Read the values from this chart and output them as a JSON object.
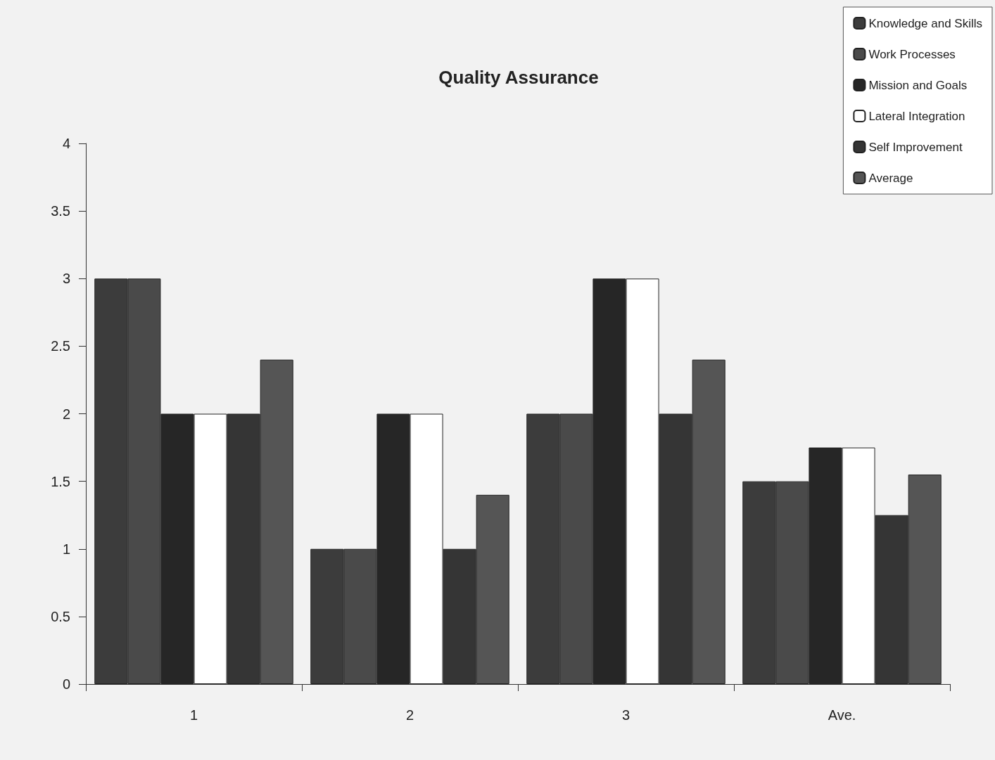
{
  "chart_data": {
    "type": "bar",
    "title": "Quality Assurance",
    "categories": [
      "1",
      "2",
      "3",
      "Ave."
    ],
    "series": [
      {
        "name": "Knowledge and Skills",
        "color": "#3c3c3c",
        "values": [
          3,
          1,
          2,
          1.5
        ]
      },
      {
        "name": "Work Processes",
        "color": "#4a4a4a",
        "values": [
          3,
          1,
          2,
          1.5
        ]
      },
      {
        "name": "Mission and Goals",
        "color": "#262626",
        "values": [
          2,
          2,
          3,
          1.75
        ]
      },
      {
        "name": "Lateral Integration",
        "color": "#ffffff",
        "values": [
          2,
          2,
          3,
          1.75
        ]
      },
      {
        "name": "Self Improvement",
        "color": "#353535",
        "values": [
          2,
          1,
          2,
          1.25
        ]
      },
      {
        "name": "Average",
        "color": "#555555",
        "values": [
          2.4,
          1.4,
          2.4,
          1.55
        ]
      }
    ],
    "ylim": [
      0,
      4
    ],
    "yticks": [
      0,
      0.5,
      1,
      1.5,
      2,
      2.5,
      3,
      3.5,
      4
    ],
    "grid": false,
    "legend": "top right"
  }
}
